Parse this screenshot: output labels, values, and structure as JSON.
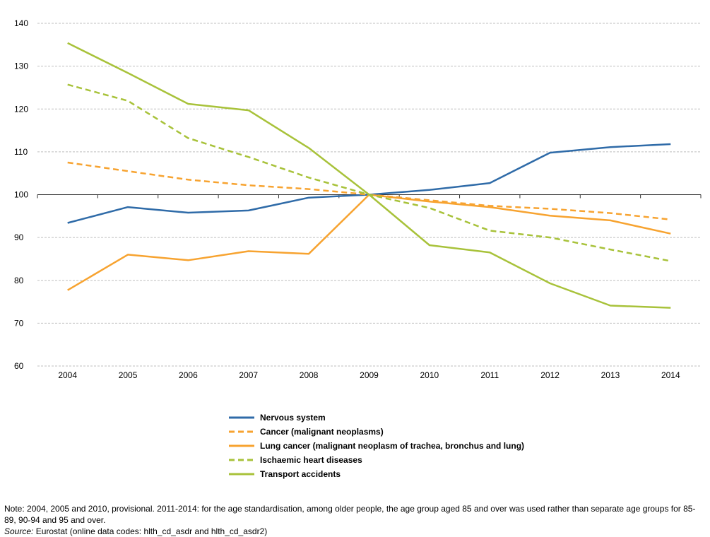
{
  "chart_data": {
    "type": "line",
    "title": "",
    "xlabel": "",
    "ylabel": "",
    "categories": [
      "2004",
      "2005",
      "2006",
      "2007",
      "2008",
      "2009",
      "2010",
      "2011",
      "2012",
      "2013",
      "2014"
    ],
    "ylim": [
      60,
      140
    ],
    "yticks": [
      "140",
      "130",
      "120",
      "110",
      "100",
      "90",
      "80",
      "70",
      "60"
    ],
    "grid": "horizontal dashed",
    "legend_position": "bottom",
    "series": [
      {
        "name": "Nervous system",
        "color": "#2f6ba8",
        "dash": "solid",
        "values": [
          93.4,
          97.1,
          95.8,
          96.3,
          99.3,
          100.0,
          101.1,
          102.7,
          109.8,
          111.1,
          111.8
        ]
      },
      {
        "name": "Cancer (malignant neoplasms)",
        "color": "#f7a330",
        "dash": "dashed",
        "values": [
          107.5,
          105.5,
          103.5,
          102.2,
          101.3,
          100.0,
          98.7,
          97.4,
          96.7,
          95.7,
          94.2
        ]
      },
      {
        "name": "Lung cancer (malignant neoplasm of trachea, bronchus and lung)",
        "color": "#f7a330",
        "dash": "solid",
        "values": [
          77.7,
          86.0,
          84.7,
          86.8,
          86.2,
          100.0,
          98.4,
          97.1,
          95.1,
          94.0,
          90.9
        ]
      },
      {
        "name": "Ischaemic heart diseases",
        "color": "#a8c23a",
        "dash": "dashed",
        "values": [
          125.7,
          121.9,
          113.2,
          108.8,
          104.0,
          100.0,
          96.9,
          91.6,
          90.0,
          87.2,
          84.5
        ]
      },
      {
        "name": "Transport accidents",
        "color": "#a8c23a",
        "dash": "solid",
        "values": [
          135.4,
          128.4,
          121.2,
          119.7,
          110.9,
          100.0,
          88.2,
          86.5,
          79.3,
          74.1,
          73.6
        ]
      }
    ]
  },
  "footnote": {
    "note": "Note: 2004, 2005 and 2010, provisional. 2011-2014: for the age standardisation, among older people, the age group aged 85 and over was used rather than separate age groups for 85-89, 90-94 and 95 and over.",
    "source_label": "Source:",
    "source_text": " Eurostat (online data codes: hlth_cd_asdr and hlth_cd_asdr2)"
  }
}
